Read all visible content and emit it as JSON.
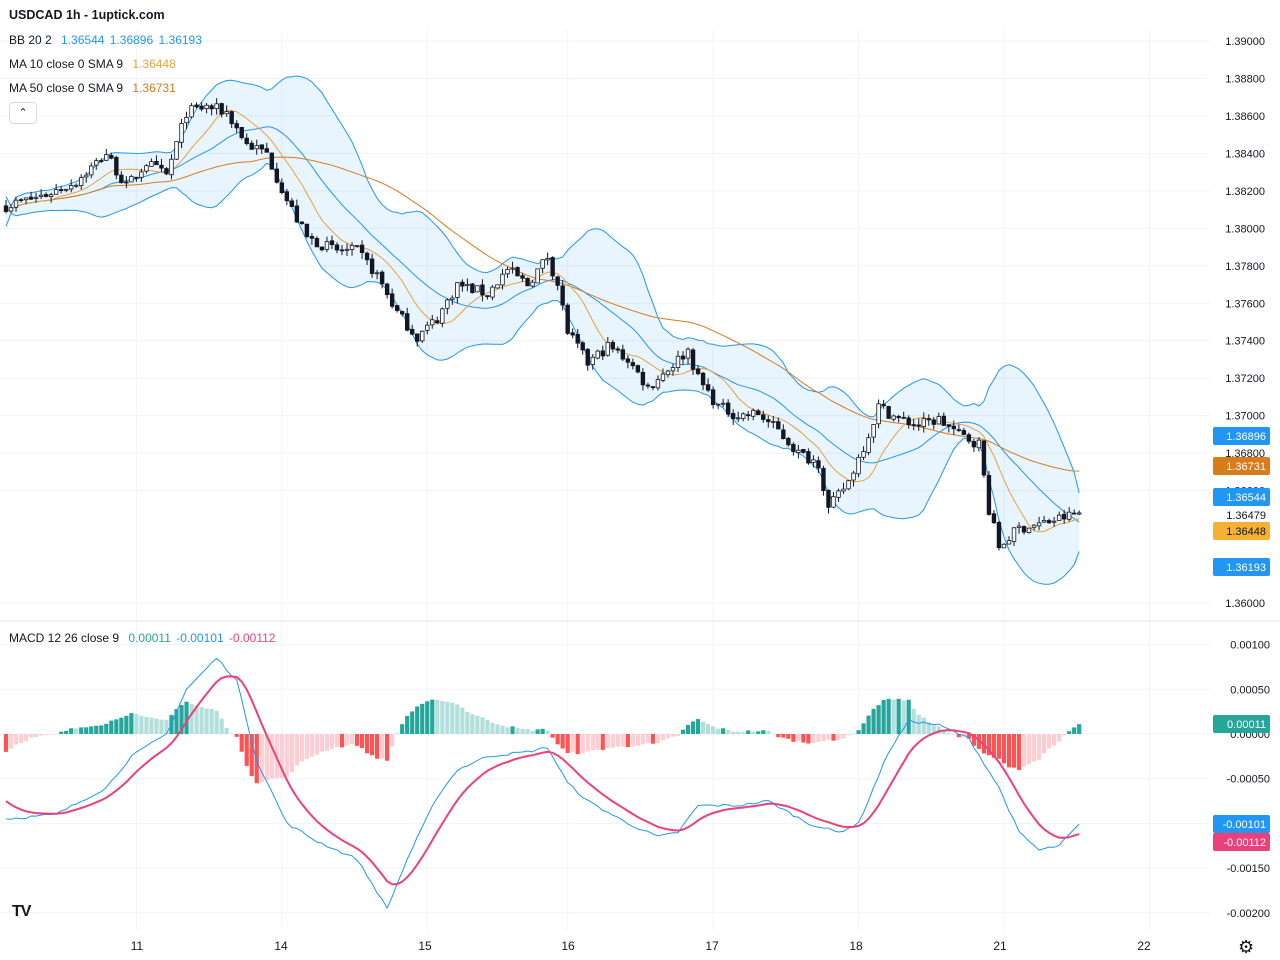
{
  "header": {
    "title": "USDCAD 1h - 1uptick.com",
    "bb": {
      "label": "BB 20 2",
      "upper": "1.36544",
      "basis": "1.36896",
      "lower": "1.36193",
      "color": "#2196f3"
    },
    "ma10": {
      "label": "MA 10 close 0 SMA 9",
      "value": "1.36448",
      "color": "#e6a23c"
    },
    "ma50": {
      "label": "MA 50 close 0 SMA 9",
      "value": "1.36731",
      "color": "#d87b1b"
    },
    "macd": {
      "label": "MACD 12 26 close 9",
      "hist": "0.00011",
      "macd": "-0.00101",
      "signal": "-0.00112"
    }
  },
  "icons": {
    "collapse": "chevron-up-icon",
    "logo": "tradingview-logo",
    "settings": "gear-icon"
  },
  "logo_text": "TV",
  "chart_data": {
    "type": "candlestick",
    "symbol": "USDCAD",
    "interval": "1h",
    "price_axis": {
      "ylim": [
        1.3595,
        1.3905
      ],
      "ticks": [
        "1.39000",
        "1.38800",
        "1.38600",
        "1.38400",
        "1.38200",
        "1.38000",
        "1.37800",
        "1.37600",
        "1.37400",
        "1.37200",
        "1.37000",
        "1.36800",
        "1.36600",
        "1.36000"
      ]
    },
    "macd_axis": {
      "ylim": [
        -0.0021,
        0.0011
      ],
      "ticks": [
        "0.00100",
        "0.00050",
        "0.00000",
        "-0.00050",
        "-0.00100",
        "-0.00150",
        "-0.00200"
      ]
    },
    "x_ticks": [
      "11",
      "14",
      "15",
      "16",
      "17",
      "18",
      "21",
      "22"
    ],
    "price_badges": [
      {
        "name": "bb-basis",
        "text": "1.36896",
        "value": 1.36896,
        "color": "#2196f3",
        "text_color": "#ffffff"
      },
      {
        "name": "ma50",
        "text": "1.36731",
        "value": 1.36731,
        "color": "#d87b1b",
        "text_color": "#ffffff"
      },
      {
        "name": "bb-upper",
        "text": "1.36544",
        "value": 1.36544,
        "color": "#2196f3",
        "text_color": "#ffffff"
      },
      {
        "name": "last-price",
        "text": "1.36479",
        "value": 1.36479,
        "color": "#ffffff",
        "text_color": "#131722"
      },
      {
        "name": "ma10",
        "text": "1.36448",
        "value": 1.36448,
        "color": "#f5b133",
        "text_color": "#131722"
      },
      {
        "name": "bb-lower",
        "text": "1.36193",
        "value": 1.36193,
        "color": "#2196f3",
        "text_color": "#ffffff"
      }
    ],
    "macd_badges": [
      {
        "name": "hist",
        "text": "0.00011",
        "value": 0.00011,
        "color": "#26a69a",
        "text_color": "#ffffff"
      },
      {
        "name": "macd",
        "text": "-0.00101",
        "value": -0.00101,
        "color": "#2196f3",
        "text_color": "#ffffff"
      },
      {
        "name": "signal",
        "text": "-0.00112",
        "value": -0.00112,
        "color": "#ec407a",
        "text_color": "#ffffff"
      }
    ],
    "close_anchors": [
      [
        0,
        1.3812
      ],
      [
        8,
        1.3818
      ],
      [
        14,
        1.3825
      ],
      [
        20,
        1.384
      ],
      [
        24,
        1.3822
      ],
      [
        28,
        1.3835
      ],
      [
        32,
        1.3828
      ],
      [
        36,
        1.3862
      ],
      [
        40,
        1.3865
      ],
      [
        44,
        1.3862
      ],
      [
        48,
        1.3845
      ],
      [
        52,
        1.384
      ],
      [
        56,
        1.3815
      ],
      [
        60,
        1.3795
      ],
      [
        66,
        1.3788
      ],
      [
        70,
        1.3788
      ],
      [
        74,
        1.3775
      ],
      [
        78,
        1.3755
      ],
      [
        82,
        1.3742
      ],
      [
        86,
        1.3752
      ],
      [
        90,
        1.377
      ],
      [
        96,
        1.3765
      ],
      [
        100,
        1.3778
      ],
      [
        104,
        1.377
      ],
      [
        108,
        1.3785
      ],
      [
        110,
        1.377
      ],
      [
        112,
        1.3745
      ],
      [
        116,
        1.3728
      ],
      [
        120,
        1.3737
      ],
      [
        124,
        1.373
      ],
      [
        128,
        1.3715
      ],
      [
        132,
        1.3725
      ],
      [
        136,
        1.3735
      ],
      [
        138,
        1.372
      ],
      [
        142,
        1.3705
      ],
      [
        146,
        1.37
      ],
      [
        150,
        1.3701
      ],
      [
        154,
        1.3692
      ],
      [
        158,
        1.368
      ],
      [
        162,
        1.3675
      ],
      [
        164,
        1.365
      ],
      [
        168,
        1.3665
      ],
      [
        172,
        1.369
      ],
      [
        174,
        1.3705
      ],
      [
        178,
        1.3698
      ],
      [
        182,
        1.3695
      ],
      [
        186,
        1.3698
      ],
      [
        190,
        1.369
      ],
      [
        194,
        1.3685
      ],
      [
        196,
        1.365
      ],
      [
        198,
        1.363
      ],
      [
        202,
        1.364
      ],
      [
        206,
        1.3642
      ],
      [
        210,
        1.3645
      ],
      [
        214,
        1.3648
      ]
    ],
    "macd_anchors": [
      [
        0,
        -0.00095
      ],
      [
        10,
        -0.0009
      ],
      [
        20,
        -0.0006
      ],
      [
        25,
        -0.00025
      ],
      [
        32,
        0.0
      ],
      [
        36,
        0.0005
      ],
      [
        42,
        0.00085
      ],
      [
        46,
        0.0006
      ],
      [
        50,
        -0.0003
      ],
      [
        56,
        -0.001
      ],
      [
        62,
        -0.0012
      ],
      [
        70,
        -0.0014
      ],
      [
        76,
        -0.00195
      ],
      [
        80,
        -0.0014
      ],
      [
        86,
        -0.0007
      ],
      [
        90,
        -0.0004
      ],
      [
        96,
        -0.00025
      ],
      [
        104,
        -0.0002
      ],
      [
        108,
        -0.00015
      ],
      [
        112,
        -0.00055
      ],
      [
        116,
        -0.00075
      ],
      [
        124,
        -0.001
      ],
      [
        130,
        -0.00115
      ],
      [
        134,
        -0.0011
      ],
      [
        138,
        -0.0008
      ],
      [
        146,
        -0.0008
      ],
      [
        152,
        -0.00075
      ],
      [
        160,
        -0.001
      ],
      [
        166,
        -0.0011
      ],
      [
        170,
        -0.001
      ],
      [
        176,
        -0.0002
      ],
      [
        180,
        0.00015
      ],
      [
        186,
        0.0001
      ],
      [
        192,
        -5e-05
      ],
      [
        198,
        -0.0006
      ],
      [
        202,
        -0.0011
      ],
      [
        206,
        -0.0013
      ],
      [
        210,
        -0.00125
      ],
      [
        214,
        -0.00101
      ]
    ]
  }
}
